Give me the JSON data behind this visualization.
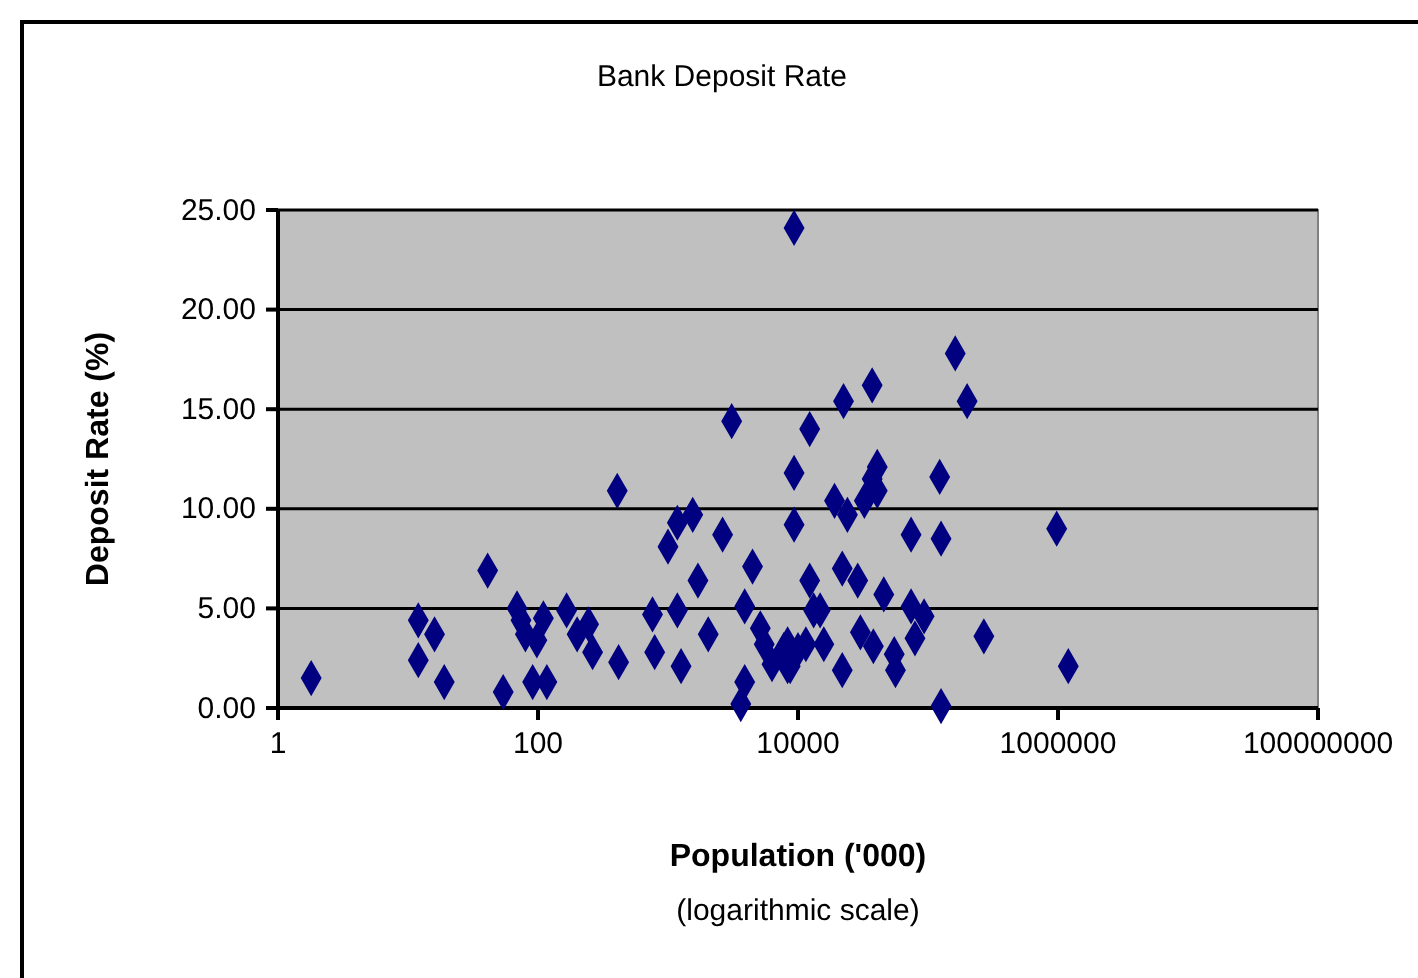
{
  "chart_data": {
    "type": "scatter",
    "title": "Bank Deposit Rate",
    "xlabel": "Population ('000)",
    "ylabel": "Deposit Rate (%)",
    "annotations": [
      "(logarithmic scale)"
    ],
    "log": "x",
    "grid": "y",
    "marker": "diamond",
    "xlim": [
      1,
      100000000
    ],
    "xticks": [
      1,
      100,
      10000,
      1000000,
      100000000
    ],
    "ylim": [
      0,
      25
    ],
    "yticks": [
      {
        "value": 0,
        "label": "0.00"
      },
      {
        "value": 5,
        "label": "5.00"
      },
      {
        "value": 10,
        "label": "10.00"
      },
      {
        "value": 15,
        "label": "15.00"
      },
      {
        "value": 20,
        "label": "20.00"
      },
      {
        "value": 25,
        "label": "25.00"
      }
    ],
    "series": [
      {
        "color": "#000080",
        "x": [
          1.8,
          12,
          12,
          16,
          19,
          41,
          54,
          69,
          74,
          80,
          91,
          98,
          110,
          117,
          166,
          200,
          245,
          263,
          407,
          417,
          760,
          790,
          1000,
          1180,
          1180,
          1260,
          1550,
          1700,
          2040,
          2630,
          3090,
          3630,
          3890,
          3890,
          4470,
          5130,
          5500,
          6310,
          7760,
          8710,
          9330,
          9330,
          9330,
          12300,
          12300,
          13200,
          8320,
          8320,
          10000,
          11500,
          14800,
          15800,
          19100,
          21900,
          21900,
          22400,
          24000,
          28800,
          30200,
          32400,
          37200,
          37200,
          38000,
          40700,
          40700,
          45700,
          55000,
          56200,
          74100,
          74100,
          79400,
          93300,
          123000,
          126000,
          126000,
          162000,
          200000,
          269000,
          977000,
          1200000
        ],
        "values": [
          1.5,
          4.4,
          2.4,
          3.7,
          1.3,
          6.9,
          0.8,
          5.0,
          4.4,
          3.7,
          1.3,
          3.4,
          4.5,
          1.3,
          4.9,
          3.7,
          4.2,
          2.8,
          10.9,
          2.3,
          4.7,
          2.8,
          8.1,
          9.3,
          4.9,
          2.1,
          9.7,
          6.4,
          3.7,
          8.7,
          14.4,
          0.2,
          5.1,
          1.3,
          7.1,
          4.0,
          3.2,
          2.2,
          2.9,
          2.1,
          24.1,
          11.8,
          9.2,
          14.0,
          6.4,
          4.9,
          3.2,
          2.1,
          2.9,
          3.2,
          4.9,
          3.2,
          10.4,
          7.0,
          1.9,
          15.4,
          9.7,
          6.4,
          3.8,
          10.4,
          16.2,
          11.5,
          3.1,
          12.1,
          10.9,
          5.7,
          2.7,
          1.9,
          8.7,
          5.1,
          3.5,
          4.6,
          11.6,
          0.1,
          8.5,
          17.8,
          15.4,
          3.6,
          9.0,
          2.1
        ]
      }
    ]
  }
}
